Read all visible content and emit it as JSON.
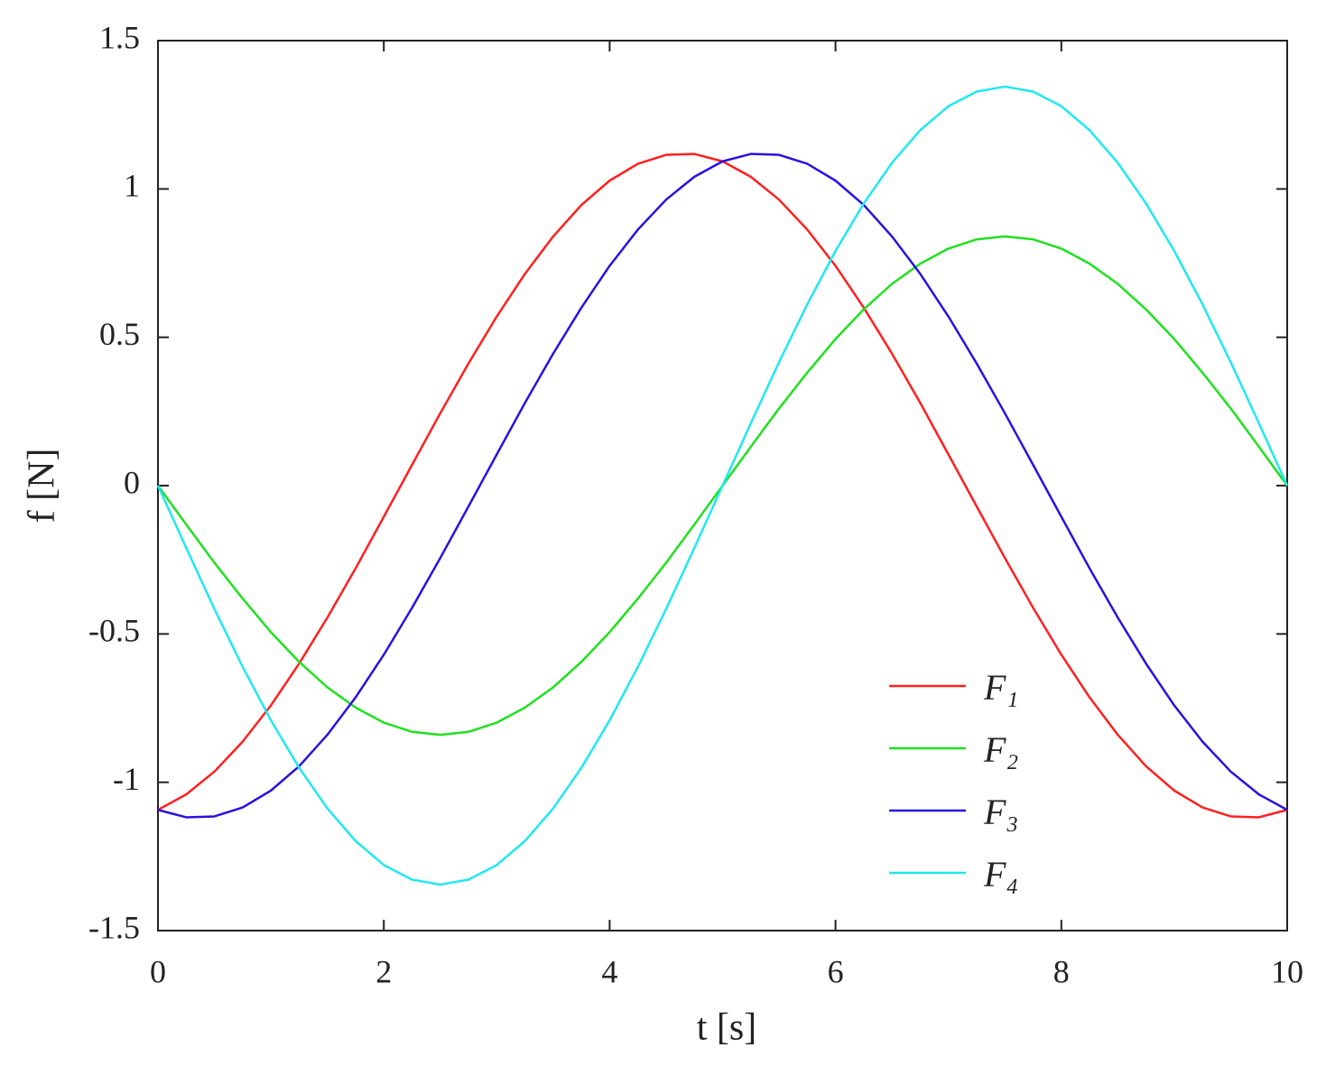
{
  "chart_data": {
    "type": "line",
    "xlabel": "t [s]",
    "ylabel": "f [N]",
    "x": [
      0,
      0.25,
      0.5,
      0.75,
      1,
      1.25,
      1.5,
      1.75,
      2,
      2.25,
      2.5,
      2.75,
      3,
      3.25,
      3.5,
      3.75,
      4,
      4.25,
      4.5,
      4.75,
      5,
      5.25,
      5.5,
      5.75,
      6,
      6.25,
      6.5,
      6.75,
      7,
      7.25,
      7.5,
      7.75,
      8,
      8.25,
      8.5,
      8.75,
      9,
      9.25,
      9.5,
      9.75,
      10
    ],
    "series": [
      {
        "name": "F₁",
        "color": "#ff2020",
        "values": [
          -1.093,
          -1.041,
          -0.964,
          -0.863,
          -0.741,
          -0.6,
          -0.445,
          -0.279,
          -0.105,
          0.07,
          0.244,
          0.412,
          0.57,
          0.714,
          0.84,
          0.946,
          1.028,
          1.085,
          1.115,
          1.118,
          1.093,
          1.041,
          0.964,
          0.863,
          0.741,
          0.6,
          0.445,
          0.279,
          0.105,
          -0.07,
          -0.244,
          -0.412,
          -0.57,
          -0.714,
          -0.84,
          -0.946,
          -1.028,
          -1.085,
          -1.115,
          -1.118,
          -1.093
        ]
      },
      {
        "name": "F₂",
        "color": "#20e020",
        "values": [
          0,
          -0.131,
          -0.26,
          -0.381,
          -0.494,
          -0.594,
          -0.68,
          -0.748,
          -0.799,
          -0.83,
          -0.84,
          -0.83,
          -0.799,
          -0.748,
          -0.68,
          -0.594,
          -0.494,
          -0.381,
          -0.26,
          -0.131,
          0,
          0.131,
          0.26,
          0.381,
          0.494,
          0.594,
          0.68,
          0.748,
          0.799,
          0.83,
          0.84,
          0.83,
          0.799,
          0.748,
          0.68,
          0.594,
          0.494,
          0.381,
          0.26,
          0.131,
          0
        ]
      },
      {
        "name": "F₃",
        "color": "#2a10e0",
        "values": [
          -1.093,
          -1.118,
          -1.115,
          -1.085,
          -1.028,
          -0.946,
          -0.84,
          -0.714,
          -0.57,
          -0.412,
          -0.244,
          -0.07,
          0.105,
          0.279,
          0.445,
          0.6,
          0.741,
          0.863,
          0.964,
          1.041,
          1.093,
          1.118,
          1.115,
          1.085,
          1.028,
          0.946,
          0.84,
          0.714,
          0.57,
          0.412,
          0.244,
          0.07,
          -0.105,
          -0.279,
          -0.445,
          -0.6,
          -0.741,
          -0.863,
          -0.964,
          -1.041,
          -1.093
        ]
      },
      {
        "name": "F₄",
        "color": "#20e8f0",
        "values": [
          0,
          -0.21,
          -0.416,
          -0.611,
          -0.791,
          -0.951,
          -1.088,
          -1.198,
          -1.279,
          -1.328,
          -1.345,
          -1.328,
          -1.279,
          -1.198,
          -1.088,
          -0.951,
          -0.791,
          -0.611,
          -0.416,
          -0.21,
          0,
          0.21,
          0.416,
          0.611,
          0.791,
          0.951,
          1.088,
          1.198,
          1.279,
          1.328,
          1.345,
          1.328,
          1.279,
          1.198,
          1.088,
          0.951,
          0.791,
          0.611,
          0.416,
          0.21,
          0
        ]
      }
    ],
    "xlim": [
      0,
      10
    ],
    "ylim": [
      -1.5,
      1.5
    ],
    "xticks": [
      0,
      2,
      4,
      6,
      8,
      10
    ],
    "yticks": [
      -1.5,
      -1,
      -0.5,
      0,
      0.5,
      1,
      1.5
    ],
    "legend": "lower-right",
    "grid": false
  }
}
